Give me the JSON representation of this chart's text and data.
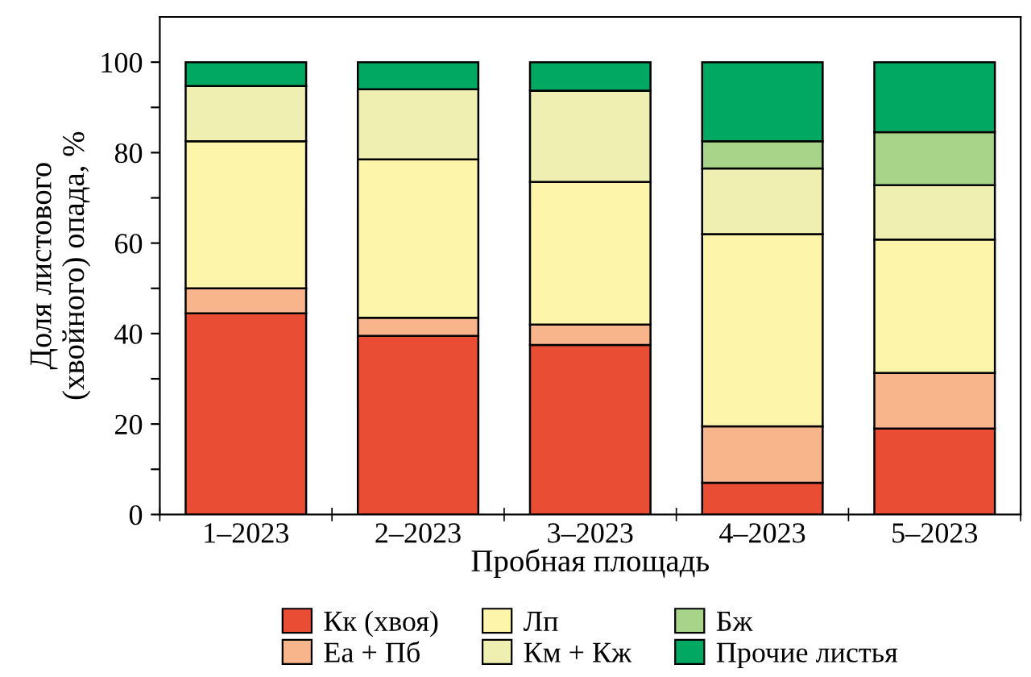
{
  "chart_data": {
    "type": "bar",
    "stacked": true,
    "xlabel": "Пробная площадь",
    "ylabel": "Доля листового\n(хвойного) опада, %",
    "categories": [
      "1–2023",
      "2–2023",
      "3–2023",
      "4–2023",
      "5–2023"
    ],
    "series": [
      {
        "name": "Кк (хвоя)",
        "color": "#e94e35",
        "values": [
          44.5,
          39.5,
          37.5,
          7,
          19
        ]
      },
      {
        "name": "Еа + Пб",
        "color": "#f8b48a",
        "values": [
          5.5,
          4,
          4.5,
          12.5,
          12.3
        ]
      },
      {
        "name": "Лп",
        "color": "#fdf5aa",
        "values": [
          32.5,
          35,
          31.5,
          42.5,
          29.5
        ]
      },
      {
        "name": "Км + Кж",
        "color": "#eeefb0",
        "values": [
          12.2,
          15.5,
          20.2,
          14.5,
          12
        ]
      },
      {
        "name": "Бж",
        "color": "#a8d48a",
        "values": [
          0,
          0,
          0,
          6,
          11.7
        ]
      },
      {
        "name": "Прочие листья",
        "color": "#00a862",
        "values": [
          5.3,
          6,
          6.3,
          17.5,
          15.5
        ]
      }
    ],
    "ylim": [
      0,
      110
    ],
    "yticks": [
      0,
      {
        "value": 10,
        "label": null
      },
      20,
      {
        "value": 30,
        "label": null
      },
      40,
      {
        "value": 50,
        "label": null
      },
      60,
      {
        "value": 70,
        "label": null
      },
      80,
      {
        "value": 90,
        "label": null
      },
      100
    ],
    "grid": false,
    "legend": "bottom"
  }
}
